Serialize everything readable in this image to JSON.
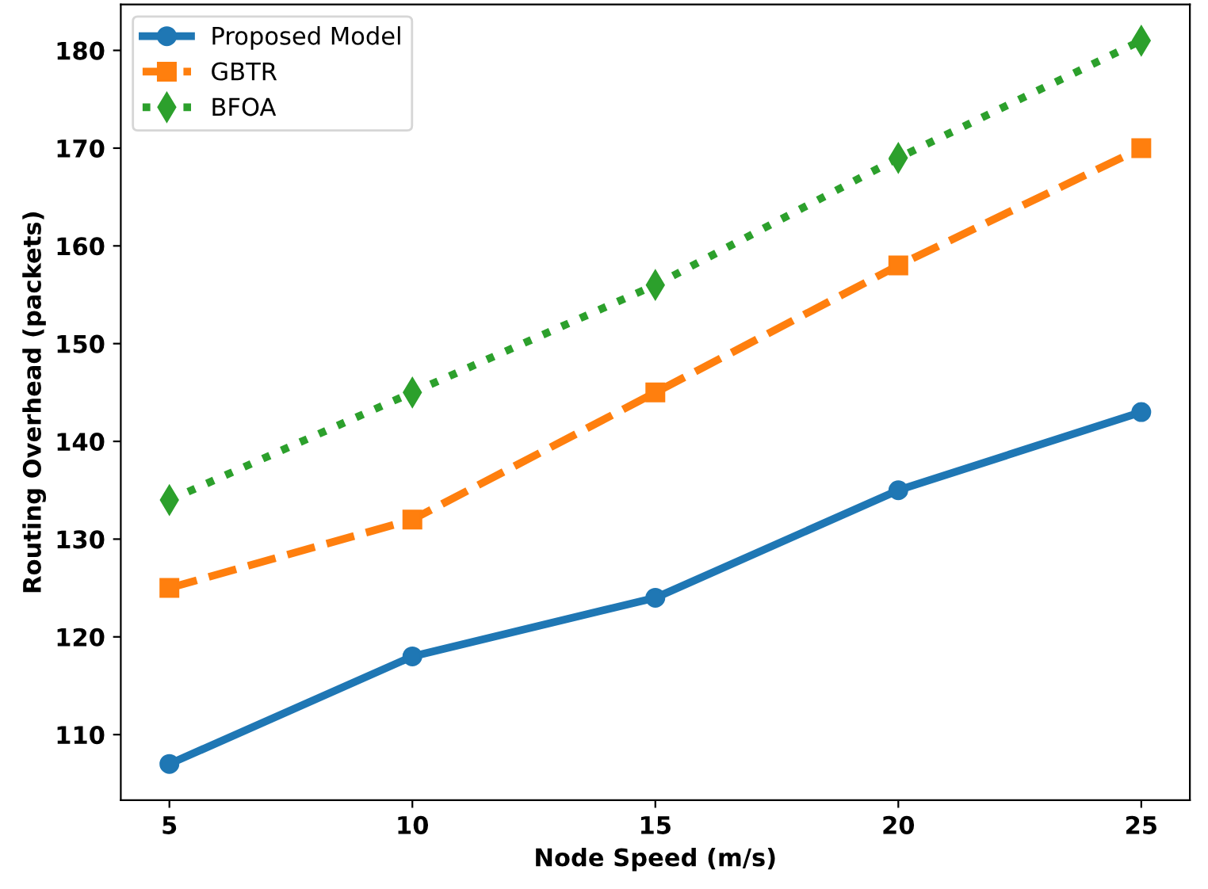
{
  "chart_data": {
    "type": "line",
    "xlabel": "Node Speed (m/s)",
    "ylabel": "Routing Overhead (packets)",
    "x": [
      5,
      10,
      15,
      20,
      25
    ],
    "series": [
      {
        "name": "Proposed Model",
        "color": "#1f77b4",
        "marker": "circle",
        "line_style": "solid",
        "values": [
          107,
          118,
          124,
          135,
          143
        ]
      },
      {
        "name": "GBTR",
        "color": "#ff7f0e",
        "marker": "square",
        "line_style": "dashed",
        "values": [
          125,
          132,
          145,
          158,
          170
        ]
      },
      {
        "name": "BFOA",
        "color": "#2ca02c",
        "marker": "diamond",
        "line_style": "dotted",
        "values": [
          134,
          145,
          156,
          169,
          181
        ]
      }
    ],
    "xlim": [
      4,
      26
    ],
    "xticks": [
      5,
      10,
      15,
      20,
      25
    ],
    "ylim": [
      103.3,
      184.7
    ],
    "yticks": [
      110,
      120,
      130,
      140,
      150,
      160,
      170,
      180
    ],
    "grid": false,
    "legend": "top left"
  }
}
